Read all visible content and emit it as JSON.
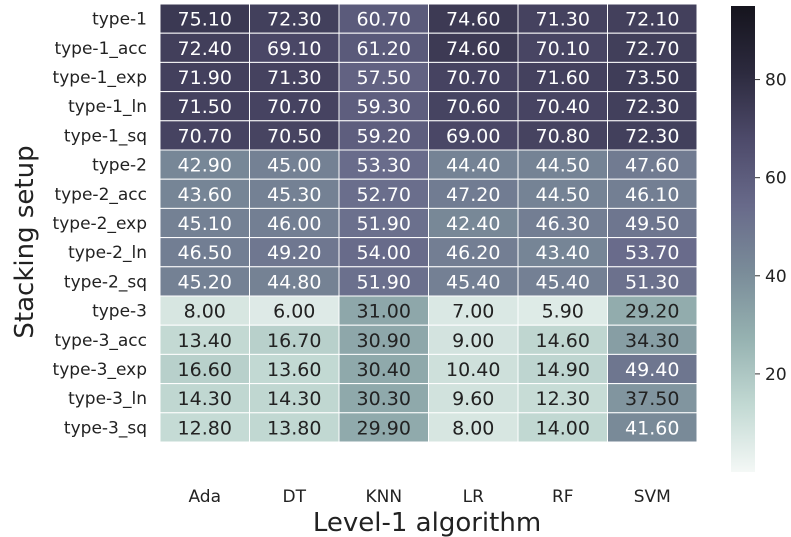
{
  "chart_data": {
    "type": "heatmap",
    "xlabel": "Level-1 algorithm",
    "ylabel": "Stacking setup",
    "columns": [
      "Ada",
      "DT",
      "KNN",
      "LR",
      "RF",
      "SVM"
    ],
    "rows": [
      "type-1",
      "type-1_acc",
      "type-1_exp",
      "type-1_ln",
      "type-1_sq",
      "type-2",
      "type-2_acc",
      "type-2_exp",
      "type-2_ln",
      "type-2_sq",
      "type-3",
      "type-3_acc",
      "type-3_exp",
      "type-3_ln",
      "type-3_sq"
    ],
    "values": [
      [
        75.1,
        72.3,
        60.7,
        74.6,
        71.3,
        72.1
      ],
      [
        72.4,
        69.1,
        61.2,
        74.6,
        70.1,
        72.7
      ],
      [
        71.9,
        71.3,
        57.5,
        70.7,
        71.6,
        73.5
      ],
      [
        71.5,
        70.7,
        59.3,
        70.6,
        70.4,
        72.3
      ],
      [
        70.7,
        70.5,
        59.2,
        69.0,
        70.8,
        72.3
      ],
      [
        42.9,
        45.0,
        53.3,
        44.4,
        44.5,
        47.6
      ],
      [
        43.6,
        45.3,
        52.7,
        47.2,
        44.5,
        46.1
      ],
      [
        45.1,
        46.0,
        51.9,
        42.4,
        46.3,
        49.5
      ],
      [
        46.5,
        49.2,
        54.0,
        46.2,
        43.4,
        53.7
      ],
      [
        45.2,
        44.8,
        51.9,
        45.4,
        45.4,
        51.3
      ],
      [
        8.0,
        6.0,
        31.0,
        7.0,
        5.9,
        29.2
      ],
      [
        13.4,
        16.7,
        30.9,
        9.0,
        14.6,
        34.3
      ],
      [
        16.6,
        13.6,
        30.4,
        10.4,
        14.9,
        49.4
      ],
      [
        14.3,
        14.3,
        30.3,
        9.6,
        12.3,
        37.5
      ],
      [
        12.8,
        13.8,
        29.9,
        8.0,
        14.0,
        41.6
      ]
    ],
    "colorbar": {
      "range": [
        0,
        95
      ],
      "ticks": [
        20,
        40,
        60,
        80
      ],
      "colors": [
        "#f4f8f6",
        "#c2d9d3",
        "#96b2b1",
        "#7a8c99",
        "#686a8a",
        "#4d4a6a",
        "#2c2a3e",
        "#15141d"
      ]
    },
    "grid": true,
    "legend": "colorbar-right"
  }
}
